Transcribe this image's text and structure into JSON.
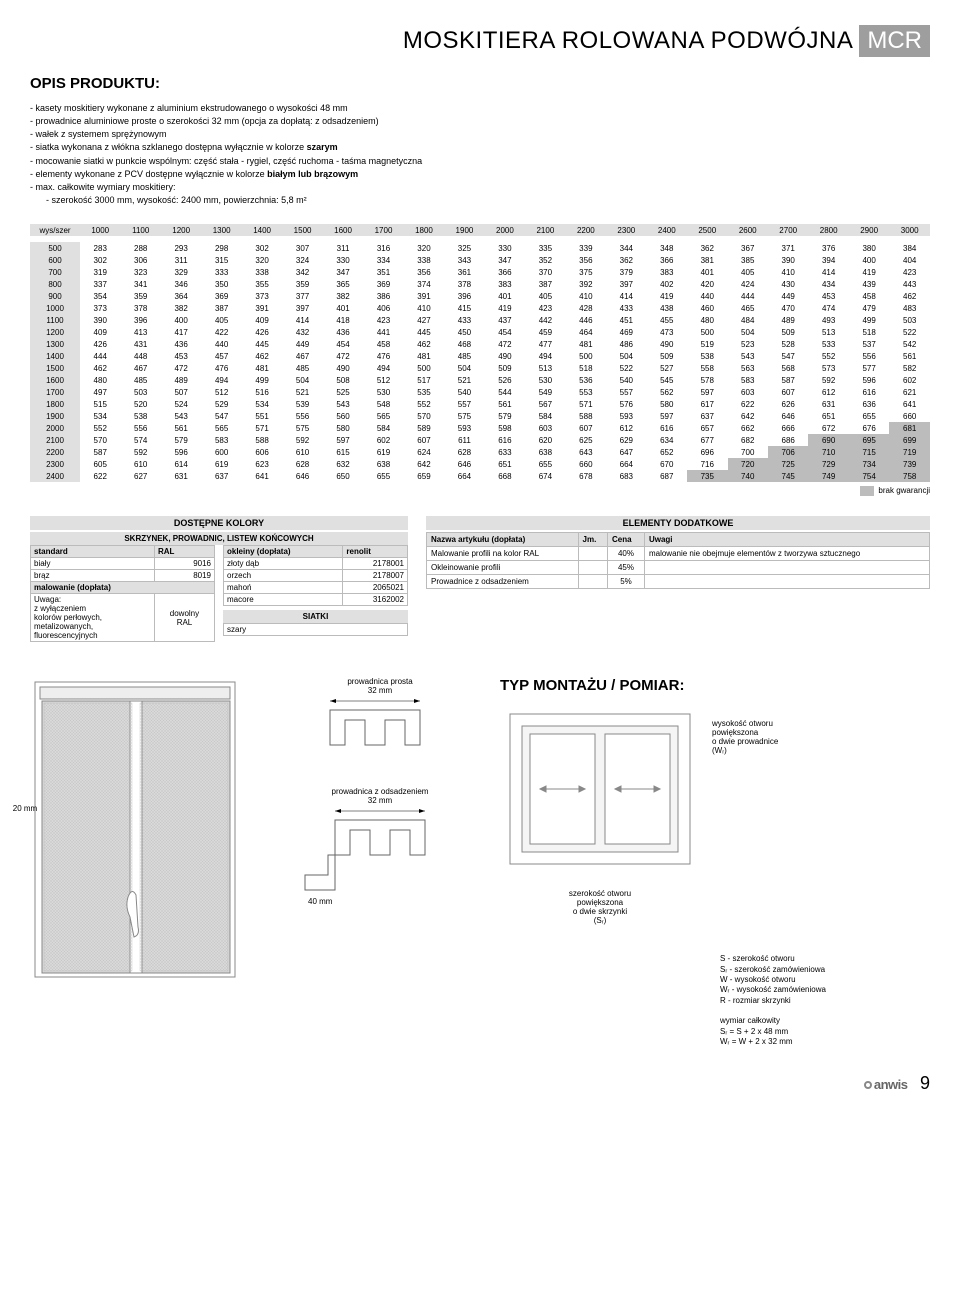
{
  "title": {
    "main": "MOSKITIERA ROLOWANA PODWÓJNA",
    "code": "MCR"
  },
  "opis": {
    "heading": "OPIS PRODUKTU:",
    "lines": [
      "- kasety moskitiery wykonane z aluminium ekstrudowanego o wysokości 48 mm",
      "- prowadnice aluminiowe proste o szerokości 32 mm (opcja za dopłatą: z odsadzeniem)",
      "- wałek z systemem sprężynowym",
      "- siatka wykonana z włókna szklanego dostępna wyłącznie w kolorze szarym",
      "- mocowanie siatki w punkcie wspólnym: część stała - rygiel, część ruchoma - taśma magnetyczna",
      "- elementy wykonane z PCV dostępne wyłącznie w kolorze białym lub brązowym",
      "- max. całkowite wymiary moskitiery:",
      "    - szerokość 3000 mm, wysokość: 2400 mm, powierzchnia: 5,8 m²"
    ]
  },
  "price_table": {
    "corner": "wys/szer",
    "widths": [
      "1000",
      "1100",
      "1200",
      "1300",
      "1400",
      "1500",
      "1600",
      "1700",
      "1800",
      "1900",
      "2000",
      "2100",
      "2200",
      "2300",
      "2400",
      "2500",
      "2600",
      "2700",
      "2800",
      "2900",
      "3000"
    ],
    "rows": [
      {
        "h": "500",
        "v": [
          "283",
          "288",
          "293",
          "298",
          "302",
          "307",
          "311",
          "316",
          "320",
          "325",
          "330",
          "335",
          "339",
          "344",
          "348",
          "362",
          "367",
          "371",
          "376",
          "380",
          "384"
        ]
      },
      {
        "h": "600",
        "v": [
          "302",
          "306",
          "311",
          "315",
          "320",
          "324",
          "330",
          "334",
          "338",
          "343",
          "347",
          "352",
          "356",
          "362",
          "366",
          "381",
          "385",
          "390",
          "394",
          "400",
          "404"
        ]
      },
      {
        "h": "700",
        "v": [
          "319",
          "323",
          "329",
          "333",
          "338",
          "342",
          "347",
          "351",
          "356",
          "361",
          "366",
          "370",
          "375",
          "379",
          "383",
          "401",
          "405",
          "410",
          "414",
          "419",
          "423"
        ]
      },
      {
        "h": "800",
        "v": [
          "337",
          "341",
          "346",
          "350",
          "355",
          "359",
          "365",
          "369",
          "374",
          "378",
          "383",
          "387",
          "392",
          "397",
          "402",
          "420",
          "424",
          "430",
          "434",
          "439",
          "443"
        ]
      },
      {
        "h": "900",
        "v": [
          "354",
          "359",
          "364",
          "369",
          "373",
          "377",
          "382",
          "386",
          "391",
          "396",
          "401",
          "405",
          "410",
          "414",
          "419",
          "440",
          "444",
          "449",
          "453",
          "458",
          "462"
        ]
      },
      {
        "h": "1000",
        "v": [
          "373",
          "378",
          "382",
          "387",
          "391",
          "397",
          "401",
          "406",
          "410",
          "415",
          "419",
          "423",
          "428",
          "433",
          "438",
          "460",
          "465",
          "470",
          "474",
          "479",
          "483"
        ]
      },
      {
        "h": "1100",
        "v": [
          "390",
          "396",
          "400",
          "405",
          "409",
          "414",
          "418",
          "423",
          "427",
          "433",
          "437",
          "442",
          "446",
          "451",
          "455",
          "480",
          "484",
          "489",
          "493",
          "499",
          "503"
        ]
      },
      {
        "h": "1200",
        "v": [
          "409",
          "413",
          "417",
          "422",
          "426",
          "432",
          "436",
          "441",
          "445",
          "450",
          "454",
          "459",
          "464",
          "469",
          "473",
          "500",
          "504",
          "509",
          "513",
          "518",
          "522"
        ]
      },
      {
        "h": "1300",
        "v": [
          "426",
          "431",
          "436",
          "440",
          "445",
          "449",
          "454",
          "458",
          "462",
          "468",
          "472",
          "477",
          "481",
          "486",
          "490",
          "519",
          "523",
          "528",
          "533",
          "537",
          "542"
        ]
      },
      {
        "h": "1400",
        "v": [
          "444",
          "448",
          "453",
          "457",
          "462",
          "467",
          "472",
          "476",
          "481",
          "485",
          "490",
          "494",
          "500",
          "504",
          "509",
          "538",
          "543",
          "547",
          "552",
          "556",
          "561"
        ]
      },
      {
        "h": "1500",
        "v": [
          "462",
          "467",
          "472",
          "476",
          "481",
          "485",
          "490",
          "494",
          "500",
          "504",
          "509",
          "513",
          "518",
          "522",
          "527",
          "558",
          "563",
          "568",
          "573",
          "577",
          "582"
        ]
      },
      {
        "h": "1600",
        "v": [
          "480",
          "485",
          "489",
          "494",
          "499",
          "504",
          "508",
          "512",
          "517",
          "521",
          "526",
          "530",
          "536",
          "540",
          "545",
          "578",
          "583",
          "587",
          "592",
          "596",
          "602"
        ]
      },
      {
        "h": "1700",
        "v": [
          "497",
          "503",
          "507",
          "512",
          "516",
          "521",
          "525",
          "530",
          "535",
          "540",
          "544",
          "549",
          "553",
          "557",
          "562",
          "597",
          "603",
          "607",
          "612",
          "616",
          "621"
        ]
      },
      {
        "h": "1800",
        "v": [
          "515",
          "520",
          "524",
          "529",
          "534",
          "539",
          "543",
          "548",
          "552",
          "557",
          "561",
          "567",
          "571",
          "576",
          "580",
          "617",
          "622",
          "626",
          "631",
          "636",
          "641"
        ]
      },
      {
        "h": "1900",
        "v": [
          "534",
          "538",
          "543",
          "547",
          "551",
          "556",
          "560",
          "565",
          "570",
          "575",
          "579",
          "584",
          "588",
          "593",
          "597",
          "637",
          "642",
          "646",
          "651",
          "655",
          "660"
        ]
      },
      {
        "h": "2000",
        "v": [
          "552",
          "556",
          "561",
          "565",
          "571",
          "575",
          "580",
          "584",
          "589",
          "593",
          "598",
          "603",
          "607",
          "612",
          "616",
          "657",
          "662",
          "666",
          "672",
          "676",
          "681"
        ],
        "grey": [
          20
        ]
      },
      {
        "h": "2100",
        "v": [
          "570",
          "574",
          "579",
          "583",
          "588",
          "592",
          "597",
          "602",
          "607",
          "611",
          "616",
          "620",
          "625",
          "629",
          "634",
          "677",
          "682",
          "686",
          "690",
          "695",
          "699"
        ],
        "grey": [
          18,
          19,
          20
        ]
      },
      {
        "h": "2200",
        "v": [
          "587",
          "592",
          "596",
          "600",
          "606",
          "610",
          "615",
          "619",
          "624",
          "628",
          "633",
          "638",
          "643",
          "647",
          "652",
          "696",
          "700",
          "706",
          "710",
          "715",
          "719"
        ],
        "grey": [
          17,
          18,
          19,
          20
        ]
      },
      {
        "h": "2300",
        "v": [
          "605",
          "610",
          "614",
          "619",
          "623",
          "628",
          "632",
          "638",
          "642",
          "646",
          "651",
          "655",
          "660",
          "664",
          "670",
          "716",
          "720",
          "725",
          "729",
          "734",
          "739"
        ],
        "grey": [
          16,
          17,
          18,
          19,
          20
        ]
      },
      {
        "h": "2400",
        "v": [
          "622",
          "627",
          "631",
          "637",
          "641",
          "646",
          "650",
          "655",
          "659",
          "664",
          "668",
          "674",
          "678",
          "683",
          "687",
          "735",
          "740",
          "745",
          "749",
          "754",
          "758"
        ],
        "grey": [
          15,
          16,
          17,
          18,
          19,
          20
        ]
      }
    ],
    "warranty": "brak gwarancji"
  },
  "kolory": {
    "title": "DOSTĘPNE KOLORY",
    "subtitle": "SKRZYNEK, PROWADNIC, LISTEW KOŃCOWYCH",
    "left_header": [
      "standard",
      "RAL"
    ],
    "left_rows": [
      [
        "biały",
        "9016"
      ],
      [
        "brąz",
        "8019"
      ]
    ],
    "doplata_header": "malowanie (dopłata)",
    "doplata_note": "Uwaga:\nz wyłączeniem\nkolorów perłowych,\nmetalizowanych,\nfluorescencyjnych",
    "doplata_val": "dowolny\nRAL",
    "okleiny_header": [
      "okleiny (dopłata)",
      "renolit"
    ],
    "okleiny_rows": [
      [
        "złoty dąb",
        "2178001"
      ],
      [
        "orzech",
        "2178007"
      ],
      [
        "mahoń",
        "2065021"
      ],
      [
        "macore",
        "3162002"
      ]
    ],
    "siatki_title": "SIATKI",
    "siatki_row": "szary"
  },
  "elementy": {
    "title": "ELEMENTY DODATKOWE",
    "headers": [
      "Nazwa artykułu (dopłata)",
      "Jm.",
      "Cena",
      "Uwagi"
    ],
    "rows": [
      {
        "n": "Malowanie profili na kolor RAL",
        "jm": "",
        "c": "40%",
        "u": "malowanie nie obejmuje elementów z tworzywa sztucznego"
      },
      {
        "n": "Okleinowanie profili",
        "jm": "",
        "c": "45%",
        "u": ""
      },
      {
        "n": "Prowadnice z odsadzeniem",
        "jm": "",
        "c": "5%",
        "u": ""
      }
    ]
  },
  "diagrams": {
    "montaz_title": "TYP MONTAŻU / POMIAR:",
    "prow_prosta": "prowadnica prosta",
    "prow_odsadz": "prowadnica z odsadzeniem",
    "d32": "32 mm",
    "d20": "20 mm",
    "d40": "40 mm",
    "wys_note": "wysokość otworu\npowiększona\no dwie prowadnice\n(Wᵣ)",
    "szer_note": "szerokość otworu\npowiększona\no dwie skrzynki\n(Sᵣ)",
    "legend": [
      "S - szerokość otworu",
      "Sᵣ - szerokość zamówieniowa",
      "W - wysokość otworu",
      "Wᵣ - wysokość zamówieniowa",
      "R - rozmiar skrzynki",
      "",
      "wymiar całkowity",
      "Sᵣ = S + 2 x 48 mm",
      "Wᵣ = W + 2 x 32 mm"
    ]
  },
  "footer": {
    "logo": "anwis",
    "page": "9"
  }
}
